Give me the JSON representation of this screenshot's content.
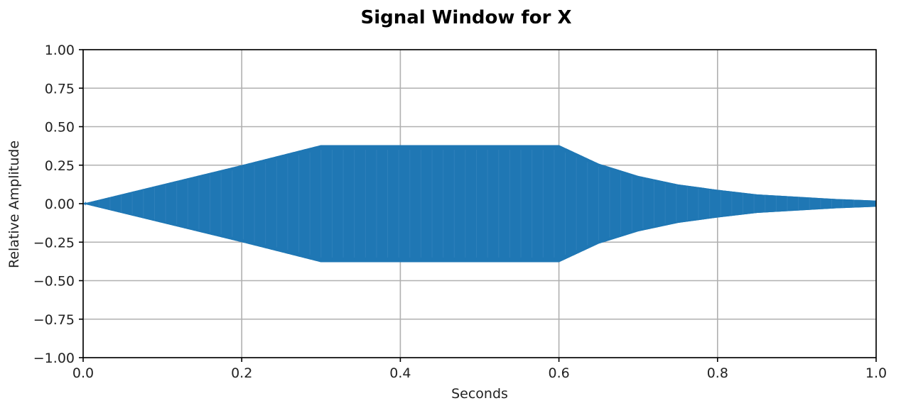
{
  "chart_data": {
    "type": "line",
    "title": "Signal Window for X",
    "xlabel": "Seconds",
    "ylabel": "Relative Amplitude",
    "xlim": [
      0.0,
      1.0
    ],
    "ylim": [
      -1.0,
      1.0
    ],
    "x_ticks": [
      "0.0",
      "0.2",
      "0.4",
      "0.6",
      "0.8",
      "1.0"
    ],
    "y_ticks": [
      "1.00",
      "0.75",
      "0.50",
      "0.25",
      "0.00",
      "−0.25",
      "−0.50",
      "−0.75",
      "−1.00"
    ],
    "grid": true,
    "series": [
      {
        "color": "#1f77b4",
        "envelope": {
          "x": [
            0.0,
            0.1,
            0.2,
            0.3,
            0.6,
            0.65,
            0.7,
            0.75,
            0.8,
            0.85,
            0.9,
            0.95,
            1.0
          ],
          "y": [
            0.0,
            0.125,
            0.25,
            0.38,
            0.38,
            0.26,
            0.18,
            0.125,
            0.09,
            0.06,
            0.045,
            0.03,
            0.02
          ]
        }
      }
    ]
  }
}
